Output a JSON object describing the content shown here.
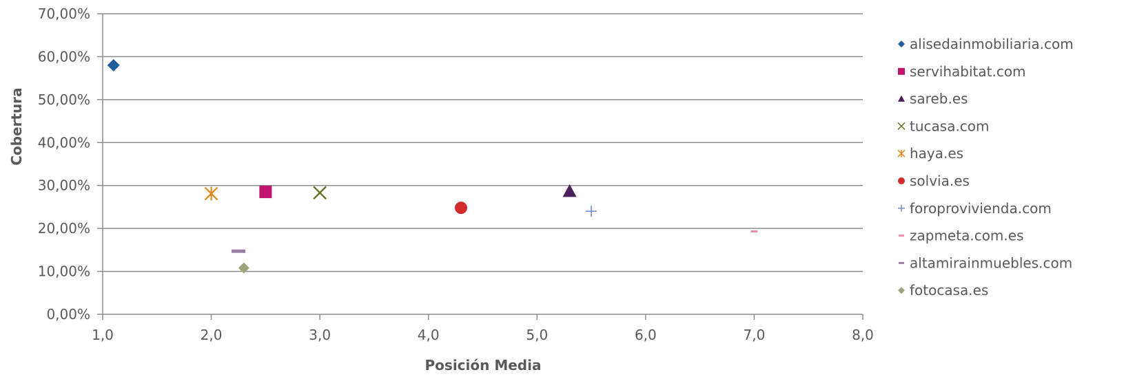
{
  "chart_data": {
    "type": "scatter",
    "title": "",
    "xlabel": "Posición Media",
    "ylabel": "Cobertura",
    "xlim": [
      1.0,
      8.0
    ],
    "ylim": [
      0,
      0.7
    ],
    "x_ticks": [
      "1,0",
      "2,0",
      "3,0",
      "4,0",
      "5,0",
      "6,0",
      "7,0",
      "8,0"
    ],
    "y_ticks": [
      "0,00%",
      "10,00%",
      "20,00%",
      "30,00%",
      "40,00%",
      "50,00%",
      "60,00%",
      "70,00%"
    ],
    "grid": "horizontal",
    "legend_position": "right",
    "series": [
      {
        "name": "alisedainmobiliaria.com",
        "marker": "diamond",
        "color": "#1F5C99",
        "x": 1.1,
        "y": 0.58
      },
      {
        "name": "servihabitat.com",
        "marker": "square",
        "color": "#C0146E",
        "x": 2.5,
        "y": 0.285
      },
      {
        "name": "sareb.es",
        "marker": "triangle",
        "color": "#4B1F5C",
        "x": 5.3,
        "y": 0.287
      },
      {
        "name": "tucasa.com",
        "marker": "x",
        "color": "#5A6B1E",
        "x": 3.0,
        "y": 0.283
      },
      {
        "name": "haya.es",
        "marker": "asterisk",
        "color": "#E08A1E",
        "x": 2.0,
        "y": 0.281
      },
      {
        "name": "solvia.es",
        "marker": "circle",
        "color": "#D22B2B",
        "x": 4.3,
        "y": 0.248
      },
      {
        "name": "foroprovivienda.com",
        "marker": "plus",
        "color": "#6F8FC9",
        "x": 5.5,
        "y": 0.24
      },
      {
        "name": "zapmeta.com.es",
        "marker": "dash",
        "color": "#F08AAE",
        "x": 7.0,
        "y": 0.193
      },
      {
        "name": "altamirainmuebles.com",
        "marker": "dash",
        "color": "#9A7FA5",
        "x": 2.25,
        "y": 0.147
      },
      {
        "name": "fotocasa.es",
        "marker": "diamond",
        "color": "#9AA57D",
        "x": 2.3,
        "y": 0.108
      }
    ]
  }
}
